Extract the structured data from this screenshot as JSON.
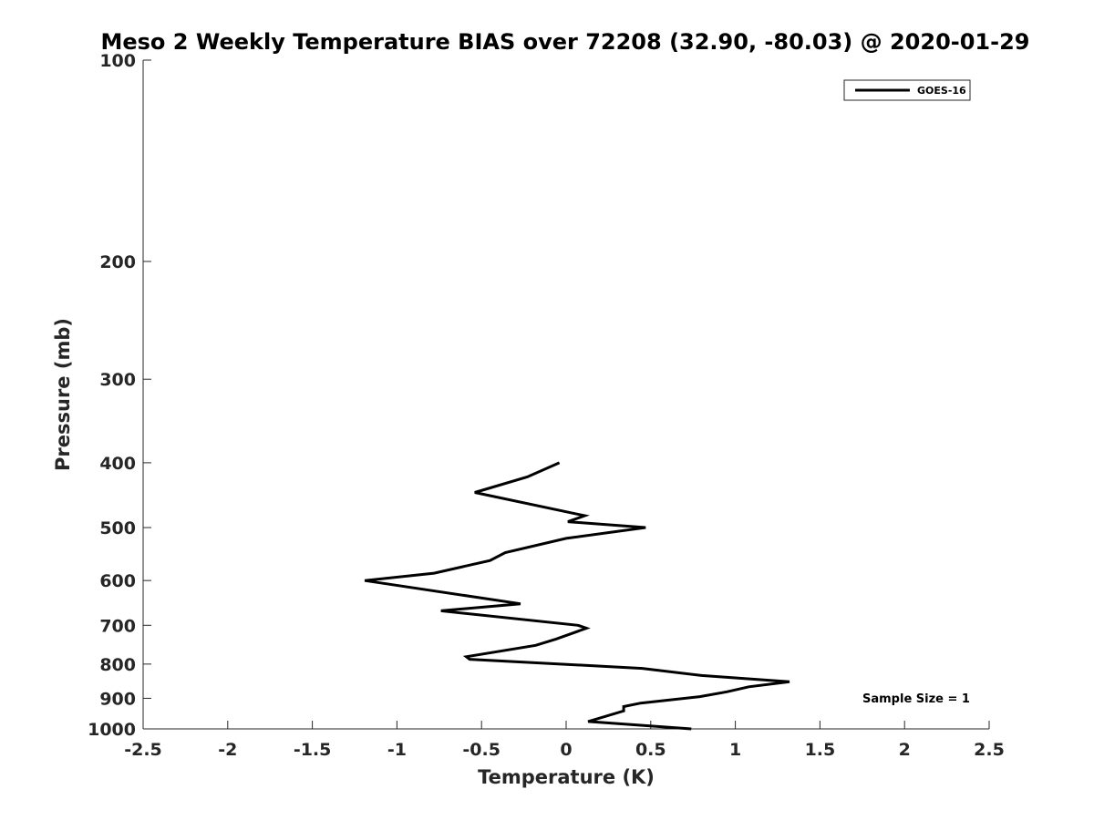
{
  "chart_data": {
    "type": "line",
    "title": "Meso 2 Weekly Temperature BIAS over 72208 (32.90, -80.03) @ 2020-01-29",
    "xlabel": "Temperature (K)",
    "ylabel": "Pressure (mb)",
    "xlim": [
      -2.5,
      2.5
    ],
    "ylim": [
      100,
      1000
    ],
    "y_scale": "log",
    "y_reversed": true,
    "grid": false,
    "legend_position": "top-right",
    "x_ticks": [
      "-2.5",
      "-2",
      "-1.5",
      "-1",
      "-0.5",
      "0",
      "0.5",
      "1",
      "1.5",
      "2",
      "2.5"
    ],
    "y_ticks": [
      "100",
      "200",
      "300",
      "400",
      "500",
      "600",
      "700",
      "800",
      "900",
      "1000"
    ],
    "annotation": "Sample Size = 1",
    "series": [
      {
        "name": "GOES-16",
        "color": "#000000",
        "x": [
          -0.04,
          -0.23,
          -0.54,
          0.11,
          0.01,
          0.47,
          0.0,
          -0.36,
          -0.45,
          -0.78,
          -1.19,
          -0.27,
          -0.74,
          0.07,
          0.12,
          -0.06,
          -0.18,
          -0.59,
          -0.57,
          0.45,
          0.8,
          1.32,
          1.08,
          0.95,
          0.79,
          0.44,
          0.34,
          0.34,
          0.13,
          0.74
        ],
        "y": [
          400,
          420,
          443,
          480,
          490,
          500,
          519,
          545,
          560,
          585,
          600,
          650,
          666,
          700,
          707,
          734,
          750,
          780,
          787,
          812,
          832,
          850,
          865,
          880,
          895,
          915,
          926,
          940,
          975,
          1000
        ]
      }
    ]
  }
}
